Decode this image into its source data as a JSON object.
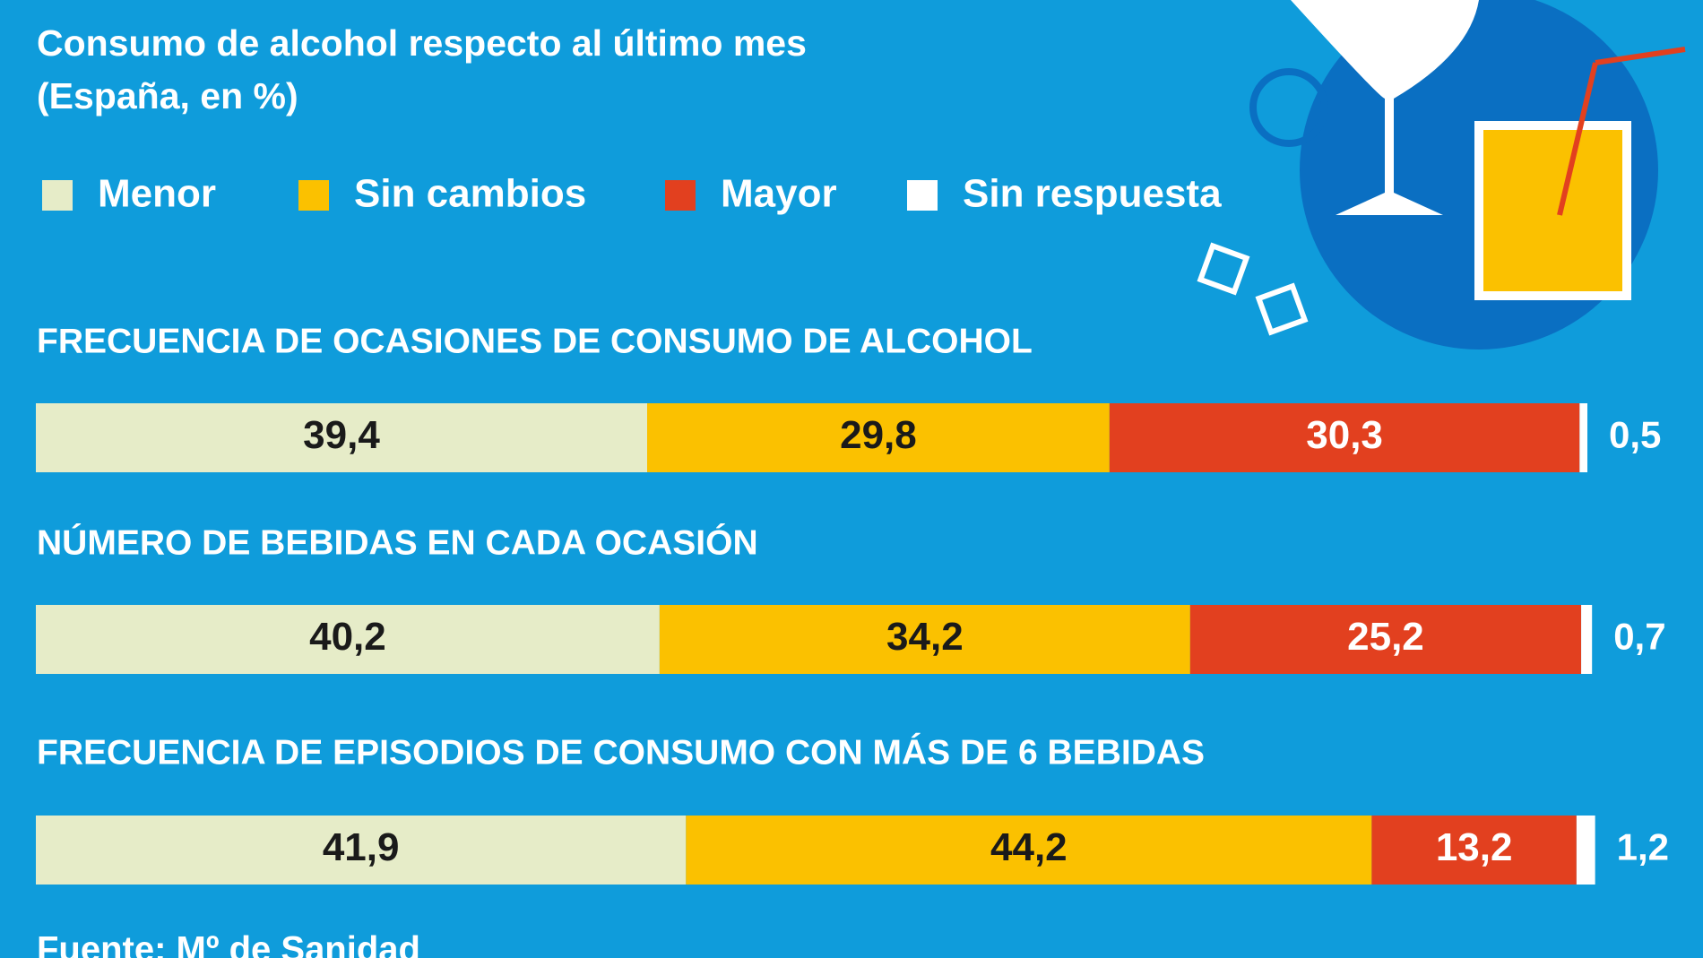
{
  "chart_data": {
    "type": "bar",
    "orientation": "horizontal",
    "stacked": true,
    "title": "Consumo de alcohol respecto al último mes",
    "subtitle": "(España, en %)",
    "categories": [
      "FRECUENCIA DE OCASIONES DE CONSUMO DE ALCOHOL",
      "NÚMERO DE BEBIDAS EN CADA OCASIÓN",
      "FRECUENCIA DE EPISODIOS DE CONSUMO CON MÁS DE 6 BEBIDAS"
    ],
    "series": [
      {
        "name": "Menor",
        "color": "#e6ecc8",
        "values": [
          39.4,
          40.2,
          41.9
        ],
        "value_labels": [
          "39,4",
          "40,2",
          "41,9"
        ]
      },
      {
        "name": "Sin cambios",
        "color": "#fbc100",
        "values": [
          29.8,
          34.2,
          44.2
        ],
        "value_labels": [
          "29,8",
          "34,2",
          "44,2"
        ]
      },
      {
        "name": "Mayor",
        "color": "#e2401f",
        "values": [
          30.3,
          25.2,
          13.2
        ],
        "value_labels": [
          "30,3",
          "25,2",
          "13,2"
        ]
      },
      {
        "name": "Sin respuesta",
        "color": "#ffffff",
        "values": [
          0.5,
          0.7,
          1.2
        ],
        "value_labels": [
          "0,5",
          "0,7",
          "1,2"
        ]
      }
    ],
    "xlim": [
      0,
      100
    ],
    "source": "Fuente: Mº de Sanidad"
  }
}
